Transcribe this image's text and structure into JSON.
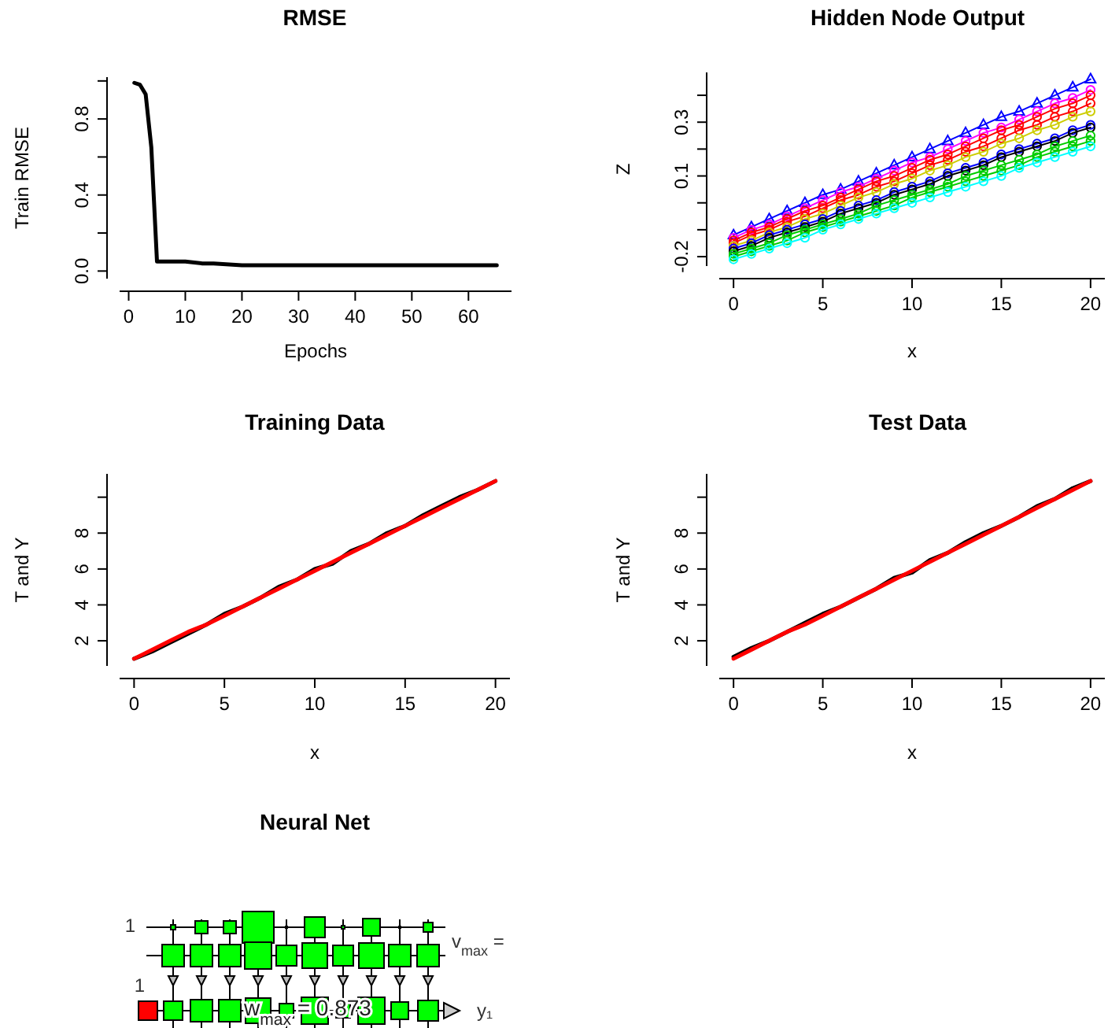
{
  "chart_data": [
    {
      "type": "line",
      "title": "RMSE",
      "xlabel": "Epochs",
      "ylabel": "Train RMSE",
      "xlim": [
        -1.6,
        67.6
      ],
      "ylim": [
        -0.04,
        1.02
      ],
      "xticks": [
        0,
        10,
        20,
        30,
        40,
        50,
        60
      ],
      "yticks": [
        {
          "value": 0,
          "label": "0.0"
        },
        {
          "value": 0.2,
          "label": null
        },
        {
          "value": 0.4,
          "label": "0.4"
        },
        {
          "value": 0.6,
          "label": null
        },
        {
          "value": 0.8,
          "label": "0.8"
        },
        {
          "value": 1,
          "label": null
        }
      ],
      "marker": "none",
      "line_style": "solid",
      "series": [
        {
          "color": "#000000",
          "x": [
            1,
            2,
            3,
            4,
            5,
            7,
            10,
            13,
            15,
            20,
            25,
            30,
            40,
            50,
            65
          ],
          "values": [
            0.99,
            0.98,
            0.93,
            0.65,
            0.05,
            0.05,
            0.05,
            0.04,
            0.04,
            0.03,
            0.03,
            0.03,
            0.03,
            0.03,
            0.03
          ]
        }
      ]
    },
    {
      "type": "line",
      "title": "Hidden Node Output",
      "xlabel": "x",
      "ylabel": "Z",
      "xlim": [
        -0.8,
        20.8
      ],
      "ylim": [
        -0.235,
        0.485
      ],
      "xticks": [
        0,
        5,
        10,
        15,
        20
      ],
      "yticks": [
        -0.2,
        {
          "value": -0.1,
          "label": null
        },
        {
          "value": 0,
          "label": null
        },
        0.1,
        {
          "value": 0.2,
          "label": null
        },
        0.3,
        {
          "value": 0.4,
          "label": null
        }
      ],
      "line_style": "solid",
      "x": [
        0,
        1,
        2,
        3,
        4,
        5,
        6,
        7,
        8,
        9,
        10,
        11,
        12,
        13,
        14,
        15,
        16,
        17,
        18,
        19,
        20
      ],
      "series": [
        {
          "color": "#0000ff",
          "marker": "triangle",
          "values": [
            -0.12,
            -0.09,
            -0.06,
            -0.03,
            0,
            0.03,
            0.05,
            0.08,
            0.11,
            0.14,
            0.17,
            0.2,
            0.23,
            0.26,
            0.29,
            0.32,
            0.34,
            0.37,
            0.4,
            0.43,
            0.46
          ]
        },
        {
          "color": "#ff00ff",
          "marker": "circle",
          "values": [
            -0.13,
            -0.1,
            -0.08,
            -0.05,
            -0.02,
            0.01,
            0.04,
            0.06,
            0.09,
            0.12,
            0.15,
            0.17,
            0.2,
            0.23,
            0.26,
            0.28,
            0.31,
            0.34,
            0.37,
            0.39,
            0.42
          ]
        },
        {
          "color": "#ff0000",
          "marker": "circle",
          "values": [
            -0.14,
            -0.11,
            -0.09,
            -0.06,
            -0.03,
            -0.01,
            0.02,
            0.05,
            0.08,
            0.1,
            0.13,
            0.16,
            0.18,
            0.21,
            0.24,
            0.27,
            0.29,
            0.32,
            0.35,
            0.37,
            0.4
          ]
        },
        {
          "color": "#ff0000",
          "marker": "circle",
          "values": [
            -0.15,
            -0.12,
            -0.1,
            -0.07,
            -0.05,
            -0.02,
            0.01,
            0.03,
            0.06,
            0.08,
            0.11,
            0.14,
            0.16,
            0.19,
            0.21,
            0.24,
            0.27,
            0.29,
            0.32,
            0.34,
            0.37
          ]
        },
        {
          "color": "#cdcd00",
          "marker": "circle",
          "values": [
            -0.16,
            -0.14,
            -0.11,
            -0.09,
            -0.06,
            -0.04,
            -0.01,
            0.02,
            0.04,
            0.07,
            0.09,
            0.12,
            0.14,
            0.17,
            0.19,
            0.22,
            0.24,
            0.27,
            0.29,
            0.32,
            0.34
          ]
        },
        {
          "color": "#0000ff",
          "marker": "circle",
          "values": [
            -0.17,
            -0.15,
            -0.12,
            -0.1,
            -0.08,
            -0.06,
            -0.03,
            -0.01,
            0.01,
            0.04,
            0.06,
            0.08,
            0.11,
            0.13,
            0.15,
            0.18,
            0.2,
            0.22,
            0.24,
            0.27,
            0.29
          ]
        },
        {
          "color": "#000000",
          "marker": "circle",
          "values": [
            -0.18,
            -0.16,
            -0.13,
            -0.11,
            -0.09,
            -0.07,
            -0.04,
            -0.02,
            0,
            0.03,
            0.05,
            0.07,
            0.1,
            0.12,
            0.14,
            0.17,
            0.19,
            0.21,
            0.23,
            0.26,
            0.28
          ]
        },
        {
          "color": "#00cd00",
          "marker": "circle",
          "values": [
            -0.19,
            -0.17,
            -0.15,
            -0.12,
            -0.1,
            -0.08,
            -0.06,
            -0.04,
            -0.01,
            0.01,
            0.03,
            0.05,
            0.07,
            0.1,
            0.12,
            0.14,
            0.16,
            0.18,
            0.21,
            0.23,
            0.25
          ]
        },
        {
          "color": "#00cd00",
          "marker": "circle",
          "values": [
            -0.2,
            -0.18,
            -0.16,
            -0.14,
            -0.11,
            -0.09,
            -0.07,
            -0.05,
            -0.03,
            -0.01,
            0.02,
            0.04,
            0.06,
            0.08,
            0.1,
            0.12,
            0.14,
            0.17,
            0.19,
            0.21,
            0.23
          ]
        },
        {
          "color": "#00ffff",
          "marker": "circle",
          "values": [
            -0.21,
            -0.19,
            -0.17,
            -0.15,
            -0.13,
            -0.1,
            -0.08,
            -0.06,
            -0.04,
            -0.02,
            0,
            0.02,
            0.04,
            0.06,
            0.08,
            0.1,
            0.13,
            0.15,
            0.17,
            0.19,
            0.21
          ]
        }
      ]
    },
    {
      "type": "line",
      "title": "Training Data",
      "xlabel": "x",
      "ylabel": "T and Y",
      "xlim": [
        -0.8,
        20.8
      ],
      "ylim": [
        0.6,
        11.3
      ],
      "xticks": [
        0,
        5,
        10,
        15,
        20
      ],
      "yticks": [
        2,
        4,
        6,
        8,
        {
          "value": 10,
          "label": null
        }
      ],
      "marker": "none",
      "line_style": "solid",
      "x": [
        0,
        1,
        2,
        3,
        4,
        5,
        6,
        7,
        8,
        9,
        10,
        11,
        12,
        13,
        14,
        15,
        16,
        17,
        18,
        19,
        20
      ],
      "series": [
        {
          "color": "#000000",
          "values": [
            1,
            1.4,
            1.9,
            2.4,
            2.9,
            3.5,
            3.9,
            4.4,
            5,
            5.4,
            6,
            6.3,
            7,
            7.4,
            8,
            8.4,
            9,
            9.5,
            10,
            10.4,
            10.9
          ]
        },
        {
          "color": "#ff0000",
          "values": [
            1,
            1.5,
            2,
            2.5,
            2.9,
            3.4,
            3.9,
            4.4,
            4.9,
            5.4,
            5.9,
            6.4,
            6.9,
            7.4,
            7.9,
            8.4,
            8.9,
            9.4,
            9.9,
            10.4,
            10.9
          ]
        }
      ]
    },
    {
      "type": "line",
      "title": "Test Data",
      "xlabel": "x",
      "ylabel": "T and Y",
      "xlim": [
        -0.8,
        20.8
      ],
      "ylim": [
        0.6,
        11.3
      ],
      "xticks": [
        0,
        5,
        10,
        15,
        20
      ],
      "yticks": [
        2,
        4,
        6,
        8,
        {
          "value": 10,
          "label": null
        }
      ],
      "marker": "none",
      "line_style": "solid",
      "x": [
        0,
        1,
        2,
        3,
        4,
        5,
        6,
        7,
        8,
        9,
        10,
        11,
        12,
        13,
        14,
        15,
        16,
        17,
        18,
        19,
        20
      ],
      "series": [
        {
          "color": "#000000",
          "values": [
            1.1,
            1.6,
            2,
            2.5,
            3,
            3.5,
            3.9,
            4.4,
            4.9,
            5.5,
            5.8,
            6.5,
            6.9,
            7.5,
            8,
            8.4,
            8.9,
            9.5,
            9.9,
            10.5,
            10.9
          ]
        },
        {
          "color": "#ff0000",
          "values": [
            1,
            1.5,
            2,
            2.5,
            2.9,
            3.4,
            3.9,
            4.4,
            4.9,
            5.4,
            5.9,
            6.4,
            6.9,
            7.4,
            7.9,
            8.4,
            8.9,
            9.4,
            9.9,
            10.4,
            10.9
          ]
        }
      ]
    },
    {
      "type": "other",
      "title": "Neural Net",
      "annotations": [
        "1",
        "1",
        "v$_{max}$ =",
        "w$_{max}$ = 0.873",
        "y₁"
      ]
    }
  ]
}
